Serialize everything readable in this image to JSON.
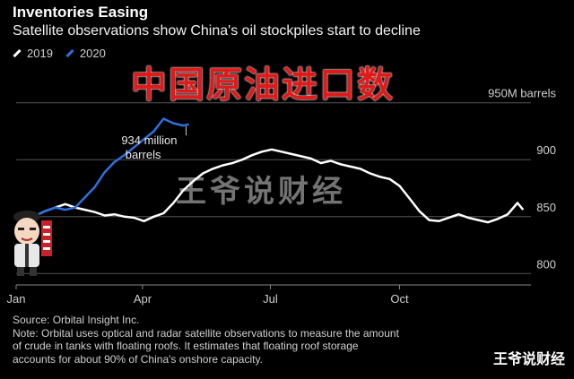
{
  "header": {
    "title": "Inventories Easing",
    "subtitle": "Satellite observations show China's oil stockpiles start to decline"
  },
  "overlay_text": "中国原油进口数",
  "watermark_text": "王爷说财经",
  "brand_text": "王爷说财经",
  "colors": {
    "series_2019": "#ffffff",
    "series_2020": "#2f6fe0",
    "grid": "#555555"
  },
  "footer": {
    "source": "Source: Orbital Insight Inc.",
    "note": "Note: Orbital uses optical and radar satellite observations to measure the amount\nof crude in tanks with floating roofs. It estimates that floating roof storage\naccounts for about 90% of China's onshore capacity."
  },
  "chart_data": {
    "type": "line",
    "ylim": [
      790,
      960
    ],
    "xlim": [
      1,
      365
    ],
    "y_ticks": [
      {
        "value": 950,
        "label": "950M barrels"
      },
      {
        "value": 900,
        "label": "900"
      },
      {
        "value": 850,
        "label": "850"
      },
      {
        "value": 800,
        "label": "800"
      }
    ],
    "x_ticks": [
      {
        "value": 1,
        "label": "Jan"
      },
      {
        "value": 91,
        "label": "Apr"
      },
      {
        "value": 182,
        "label": "Jul"
      },
      {
        "value": 274,
        "label": "Oct"
      }
    ],
    "annotation": {
      "line1": "934 million",
      "line2": "barrels",
      "x": 122,
      "y": 934
    },
    "series": [
      {
        "name": "2019",
        "x": [
          1,
          8,
          15,
          22,
          29,
          36,
          43,
          50,
          57,
          64,
          71,
          78,
          85,
          92,
          99,
          106,
          113,
          120,
          127,
          134,
          141,
          148,
          155,
          162,
          169,
          176,
          183,
          190,
          197,
          204,
          211,
          218,
          225,
          232,
          239,
          246,
          253,
          260,
          267,
          274,
          281,
          288,
          295,
          302,
          309,
          316,
          323,
          330,
          337,
          344,
          351,
          358,
          362
        ],
        "values": [
          849,
          853,
          851,
          855,
          858,
          861,
          858,
          856,
          854,
          851,
          852,
          850,
          849,
          846,
          850,
          853,
          862,
          873,
          881,
          888,
          892,
          895,
          897,
          900,
          904,
          907,
          909,
          907,
          905,
          903,
          901,
          897,
          899,
          896,
          894,
          892,
          888,
          885,
          883,
          877,
          866,
          855,
          847,
          846,
          849,
          852,
          849,
          847,
          845,
          848,
          852,
          862,
          856
        ]
      },
      {
        "name": "2020",
        "x": [
          1,
          8,
          15,
          22,
          29,
          36,
          43,
          50,
          57,
          64,
          71,
          78,
          85,
          92,
          99,
          106,
          113,
          120,
          124
        ],
        "values": [
          847,
          852,
          851,
          855,
          858,
          856,
          858,
          867,
          876,
          889,
          898,
          904,
          911,
          918,
          925,
          936,
          932,
          930,
          931
        ]
      }
    ]
  }
}
